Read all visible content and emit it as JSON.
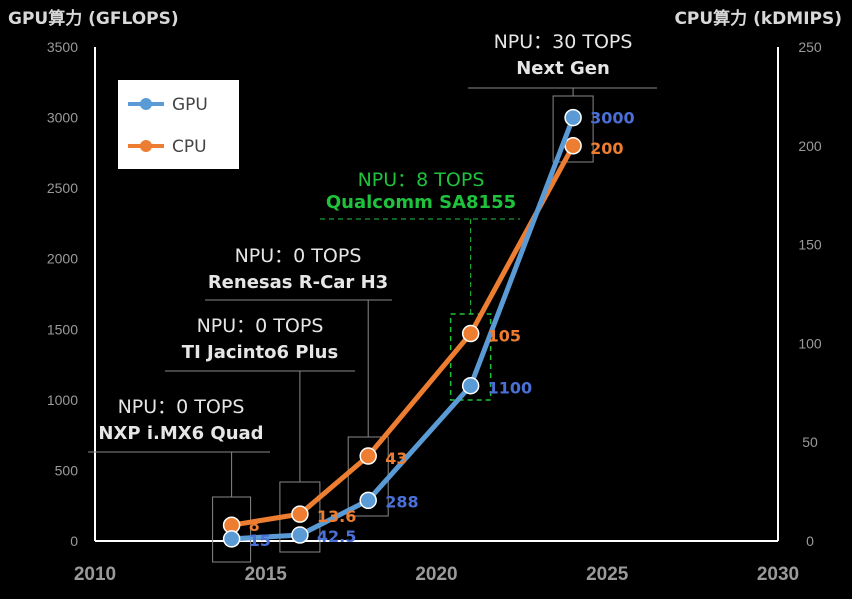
{
  "chart_data": {
    "type": "line",
    "y_left_label": "GPU算力 (GFLOPS)",
    "y_right_label": "CPU算力 (kDMIPS)",
    "x_ticks": [
      "2010",
      "2015",
      "2020",
      "2025",
      "2030"
    ],
    "xlim": [
      2010,
      2030
    ],
    "y_left_ticks": [
      "0",
      "500",
      "1000",
      "1500",
      "2000",
      "2500",
      "3000",
      "3500"
    ],
    "y_left_lim": [
      0,
      3500
    ],
    "y_right_ticks": [
      "0",
      "50",
      "100",
      "150",
      "200",
      "250"
    ],
    "y_right_lim": [
      0,
      250
    ],
    "series": [
      {
        "name": "GPU",
        "axis": "left",
        "color": "#5b9bd5",
        "label_color": "#4a6fd6",
        "x": [
          2014,
          2016,
          2018,
          2021,
          2024
        ],
        "values": [
          15,
          42.5,
          288,
          1100,
          3000
        ],
        "labels": [
          "15",
          "42.5",
          "288",
          "1100",
          "3000"
        ]
      },
      {
        "name": "CPU",
        "axis": "right",
        "color": "#ed7d31",
        "label_color": "#ed7d31",
        "x": [
          2014,
          2016,
          2018,
          2021,
          2024
        ],
        "values": [
          8,
          13.6,
          43,
          105,
          200
        ],
        "labels": [
          "8",
          "13.6",
          "43",
          "105",
          "200"
        ]
      }
    ],
    "legend": [
      "GPU",
      "CPU"
    ],
    "legend_position": "top-left",
    "annotations": [
      {
        "npu": "NPU：0 TOPS",
        "chip": "NXP i.MX6 Quad",
        "year": 2014,
        "highlight": false
      },
      {
        "npu": "NPU：0 TOPS",
        "chip": "TI Jacinto6 Plus",
        "year": 2016,
        "highlight": false
      },
      {
        "npu": "NPU：0 TOPS",
        "chip": "Renesas R-Car H3",
        "year": 2018,
        "highlight": false
      },
      {
        "npu": "NPU：8 TOPS",
        "chip": "Qualcomm SA8155",
        "year": 2021,
        "highlight": true
      },
      {
        "npu": "NPU：30 TOPS",
        "chip": "Next Gen",
        "year": 2024,
        "highlight": false
      }
    ],
    "highlight_color": "#1fc23c"
  }
}
